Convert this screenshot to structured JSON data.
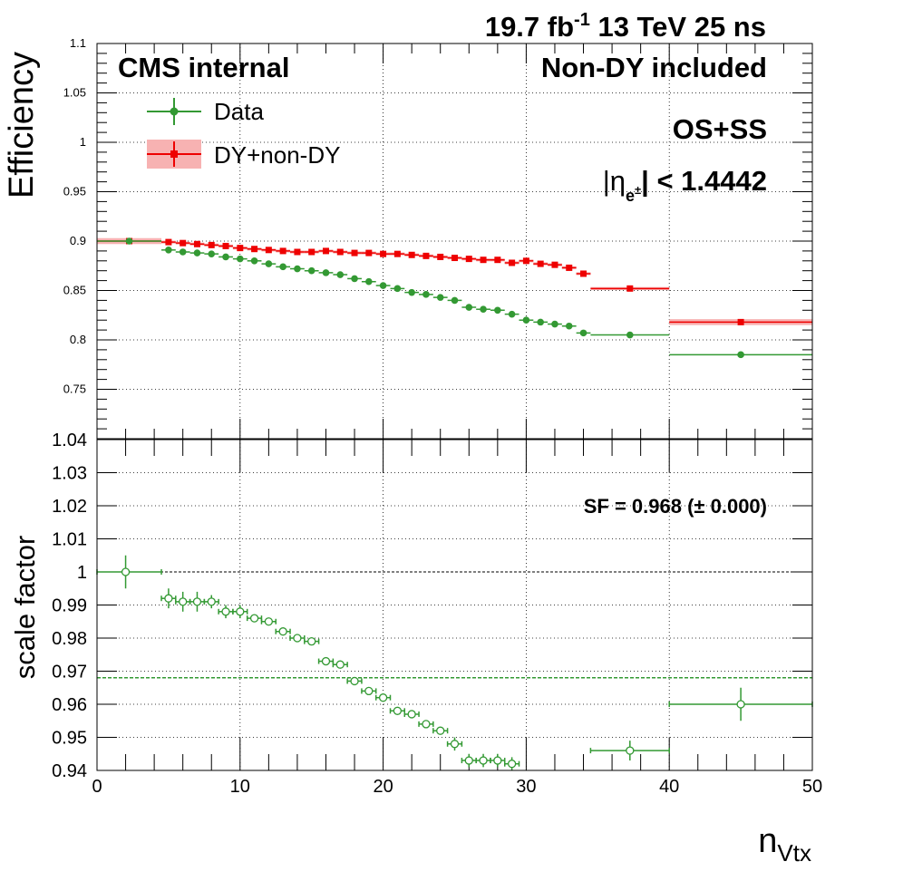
{
  "header": {
    "lumi_value": "19.7 fb",
    "lumi_exp": "-1",
    "energy": " 13 TeV 25 ns",
    "cms": "CMS internal",
    "nondy": "Non-DY included",
    "charge": "OS+SS",
    "eta_prefix": "|η",
    "eta_sub": "e",
    "eta_sup": "±",
    "eta_suffix": "| < 1.4442"
  },
  "legend": {
    "data_label": "Data",
    "mc_label": "DY+non-DY"
  },
  "colors": {
    "data": "#339933",
    "mc": "#ee0000",
    "mc_band": "#f7b2b2",
    "sf_line": "#339933"
  },
  "chart_data": [
    {
      "type": "scatter",
      "panel": "efficiency",
      "ylabel": "Efficiency",
      "xlim": [
        0,
        50
      ],
      "ylim": [
        0.7,
        1.1
      ],
      "y_ticks": [
        "0.75",
        "0.8",
        "0.85",
        "0.9",
        "0.95",
        "1",
        "1.05",
        "1.1"
      ],
      "grid": true,
      "legend_position": "top-left",
      "series": [
        {
          "name": "Data",
          "marker": "filled-circle",
          "points": [
            {
              "x": 2.25,
              "y": 0.9,
              "xlo": 0,
              "xhi": 4.5
            },
            {
              "x": 5,
              "y": 0.891,
              "xlo": 4.5,
              "xhi": 5.5
            },
            {
              "x": 6,
              "y": 0.889,
              "xlo": 5.5,
              "xhi": 6.5
            },
            {
              "x": 7,
              "y": 0.888,
              "xlo": 6.5,
              "xhi": 7.5
            },
            {
              "x": 8,
              "y": 0.887,
              "xlo": 7.5,
              "xhi": 8.5
            },
            {
              "x": 9,
              "y": 0.884,
              "xlo": 8.5,
              "xhi": 9.5
            },
            {
              "x": 10,
              "y": 0.882,
              "xlo": 9.5,
              "xhi": 10.5
            },
            {
              "x": 11,
              "y": 0.88,
              "xlo": 10.5,
              "xhi": 11.5
            },
            {
              "x": 12,
              "y": 0.877,
              "xlo": 11.5,
              "xhi": 12.5
            },
            {
              "x": 13,
              "y": 0.874,
              "xlo": 12.5,
              "xhi": 13.5
            },
            {
              "x": 14,
              "y": 0.872,
              "xlo": 13.5,
              "xhi": 14.5
            },
            {
              "x": 15,
              "y": 0.87,
              "xlo": 14.5,
              "xhi": 15.5
            },
            {
              "x": 16,
              "y": 0.868,
              "xlo": 15.5,
              "xhi": 16.5
            },
            {
              "x": 17,
              "y": 0.866,
              "xlo": 16.5,
              "xhi": 17.5
            },
            {
              "x": 18,
              "y": 0.862,
              "xlo": 17.5,
              "xhi": 18.5
            },
            {
              "x": 19,
              "y": 0.859,
              "xlo": 18.5,
              "xhi": 19.5
            },
            {
              "x": 20,
              "y": 0.855,
              "xlo": 19.5,
              "xhi": 20.5
            },
            {
              "x": 21,
              "y": 0.852,
              "xlo": 20.5,
              "xhi": 21.5
            },
            {
              "x": 22,
              "y": 0.848,
              "xlo": 21.5,
              "xhi": 22.5
            },
            {
              "x": 23,
              "y": 0.846,
              "xlo": 22.5,
              "xhi": 23.5
            },
            {
              "x": 24,
              "y": 0.843,
              "xlo": 23.5,
              "xhi": 24.5
            },
            {
              "x": 25,
              "y": 0.84,
              "xlo": 24.5,
              "xhi": 25.5
            },
            {
              "x": 26,
              "y": 0.833,
              "xlo": 25.5,
              "xhi": 26.5
            },
            {
              "x": 27,
              "y": 0.831,
              "xlo": 26.5,
              "xhi": 27.5
            },
            {
              "x": 28,
              "y": 0.83,
              "xlo": 27.5,
              "xhi": 28.5
            },
            {
              "x": 29,
              "y": 0.826,
              "xlo": 28.5,
              "xhi": 29.5
            },
            {
              "x": 30,
              "y": 0.82,
              "xlo": 29.5,
              "xhi": 30.5
            },
            {
              "x": 31,
              "y": 0.818,
              "xlo": 30.5,
              "xhi": 31.5
            },
            {
              "x": 32,
              "y": 0.816,
              "xlo": 31.5,
              "xhi": 32.5
            },
            {
              "x": 33,
              "y": 0.814,
              "xlo": 32.5,
              "xhi": 33.5
            },
            {
              "x": 34,
              "y": 0.807,
              "xlo": 33.5,
              "xhi": 34.5
            },
            {
              "x": 37.25,
              "y": 0.805,
              "xlo": 34.5,
              "xhi": 40
            },
            {
              "x": 45,
              "y": 0.785,
              "xlo": 40,
              "xhi": 50
            }
          ]
        },
        {
          "name": "DY+non-DY",
          "marker": "filled-square",
          "points": [
            {
              "x": 2.25,
              "y": 0.9,
              "xlo": 0,
              "xhi": 4.5
            },
            {
              "x": 5,
              "y": 0.899,
              "xlo": 4.5,
              "xhi": 5.5
            },
            {
              "x": 6,
              "y": 0.898,
              "xlo": 5.5,
              "xhi": 6.5
            },
            {
              "x": 7,
              "y": 0.897,
              "xlo": 6.5,
              "xhi": 7.5
            },
            {
              "x": 8,
              "y": 0.896,
              "xlo": 7.5,
              "xhi": 8.5
            },
            {
              "x": 9,
              "y": 0.895,
              "xlo": 8.5,
              "xhi": 9.5
            },
            {
              "x": 10,
              "y": 0.893,
              "xlo": 9.5,
              "xhi": 10.5
            },
            {
              "x": 11,
              "y": 0.892,
              "xlo": 10.5,
              "xhi": 11.5
            },
            {
              "x": 12,
              "y": 0.891,
              "xlo": 11.5,
              "xhi": 12.5
            },
            {
              "x": 13,
              "y": 0.89,
              "xlo": 12.5,
              "xhi": 13.5
            },
            {
              "x": 14,
              "y": 0.889,
              "xlo": 13.5,
              "xhi": 14.5
            },
            {
              "x": 15,
              "y": 0.889,
              "xlo": 14.5,
              "xhi": 15.5
            },
            {
              "x": 16,
              "y": 0.89,
              "xlo": 15.5,
              "xhi": 16.5
            },
            {
              "x": 17,
              "y": 0.889,
              "xlo": 16.5,
              "xhi": 17.5
            },
            {
              "x": 18,
              "y": 0.888,
              "xlo": 17.5,
              "xhi": 18.5
            },
            {
              "x": 19,
              "y": 0.888,
              "xlo": 18.5,
              "xhi": 19.5
            },
            {
              "x": 20,
              "y": 0.887,
              "xlo": 19.5,
              "xhi": 20.5
            },
            {
              "x": 21,
              "y": 0.887,
              "xlo": 20.5,
              "xhi": 21.5
            },
            {
              "x": 22,
              "y": 0.886,
              "xlo": 21.5,
              "xhi": 22.5
            },
            {
              "x": 23,
              "y": 0.885,
              "xlo": 22.5,
              "xhi": 23.5
            },
            {
              "x": 24,
              "y": 0.884,
              "xlo": 23.5,
              "xhi": 24.5
            },
            {
              "x": 25,
              "y": 0.883,
              "xlo": 24.5,
              "xhi": 25.5
            },
            {
              "x": 26,
              "y": 0.882,
              "xlo": 25.5,
              "xhi": 26.5
            },
            {
              "x": 27,
              "y": 0.881,
              "xlo": 26.5,
              "xhi": 27.5
            },
            {
              "x": 28,
              "y": 0.881,
              "xlo": 27.5,
              "xhi": 28.5
            },
            {
              "x": 29,
              "y": 0.878,
              "xlo": 28.5,
              "xhi": 29.5
            },
            {
              "x": 30,
              "y": 0.88,
              "xlo": 29.5,
              "xhi": 30.5
            },
            {
              "x": 31,
              "y": 0.877,
              "xlo": 30.5,
              "xhi": 31.5
            },
            {
              "x": 32,
              "y": 0.876,
              "xlo": 31.5,
              "xhi": 32.5
            },
            {
              "x": 33,
              "y": 0.873,
              "xlo": 32.5,
              "xhi": 33.5
            },
            {
              "x": 34,
              "y": 0.867,
              "xlo": 33.5,
              "xhi": 34.5
            },
            {
              "x": 37.25,
              "y": 0.852,
              "xlo": 34.5,
              "xhi": 40
            },
            {
              "x": 45,
              "y": 0.818,
              "xlo": 40,
              "xhi": 50
            }
          ]
        }
      ]
    },
    {
      "type": "scatter",
      "panel": "scale-factor",
      "ylabel": "scale factor",
      "xlabel": "n",
      "xlabel_sub": "Vtx",
      "xlim": [
        0,
        50
      ],
      "ylim": [
        0.94,
        1.04
      ],
      "x_ticks": [
        "0",
        "10",
        "20",
        "30",
        "40",
        "50"
      ],
      "y_ticks": [
        "0.94",
        "0.95",
        "0.96",
        "0.97",
        "0.98",
        "0.99",
        "1",
        "1.01",
        "1.02",
        "1.03",
        "1.04"
      ],
      "grid": true,
      "sf_text": "SF = 0.968 (± 0.000)",
      "sf_value": 0.968,
      "reference_line": 1.0,
      "series": [
        {
          "marker": "open-circle",
          "points": [
            {
              "x": 2,
              "y": 1.0,
              "xlo": 0,
              "xhi": 4.5,
              "err": 0.005
            },
            {
              "x": 5,
              "y": 0.992,
              "xlo": 4.5,
              "xhi": 5.5,
              "err": 0.003
            },
            {
              "x": 6,
              "y": 0.991,
              "xlo": 5.5,
              "xhi": 6.5,
              "err": 0.003
            },
            {
              "x": 7,
              "y": 0.991,
              "xlo": 6.5,
              "xhi": 7.5,
              "err": 0.003
            },
            {
              "x": 8,
              "y": 0.991,
              "xlo": 7.5,
              "xhi": 8.5,
              "err": 0.002
            },
            {
              "x": 9,
              "y": 0.988,
              "xlo": 8.5,
              "xhi": 9.5,
              "err": 0.002
            },
            {
              "x": 10,
              "y": 0.988,
              "xlo": 9.5,
              "xhi": 10.5,
              "err": 0.002
            },
            {
              "x": 11,
              "y": 0.986,
              "xlo": 10.5,
              "xhi": 11.5,
              "err": 0.001
            },
            {
              "x": 12,
              "y": 0.985,
              "xlo": 11.5,
              "xhi": 12.5,
              "err": 0.001
            },
            {
              "x": 13,
              "y": 0.982,
              "xlo": 12.5,
              "xhi": 13.5,
              "err": 0.001
            },
            {
              "x": 14,
              "y": 0.98,
              "xlo": 13.5,
              "xhi": 14.5,
              "err": 0.001
            },
            {
              "x": 15,
              "y": 0.979,
              "xlo": 14.5,
              "xhi": 15.5,
              "err": 0.001
            },
            {
              "x": 16,
              "y": 0.973,
              "xlo": 15.5,
              "xhi": 16.5,
              "err": 0.001
            },
            {
              "x": 17,
              "y": 0.972,
              "xlo": 16.5,
              "xhi": 17.5,
              "err": 0.001
            },
            {
              "x": 18,
              "y": 0.967,
              "xlo": 17.5,
              "xhi": 18.5,
              "err": 0.001
            },
            {
              "x": 19,
              "y": 0.964,
              "xlo": 18.5,
              "xhi": 19.5,
              "err": 0.001
            },
            {
              "x": 20,
              "y": 0.962,
              "xlo": 19.5,
              "xhi": 20.5,
              "err": 0.001
            },
            {
              "x": 21,
              "y": 0.958,
              "xlo": 20.5,
              "xhi": 21.5,
              "err": 0.001
            },
            {
              "x": 22,
              "y": 0.957,
              "xlo": 21.5,
              "xhi": 22.5,
              "err": 0.001
            },
            {
              "x": 23,
              "y": 0.954,
              "xlo": 22.5,
              "xhi": 23.5,
              "err": 0.001
            },
            {
              "x": 24,
              "y": 0.952,
              "xlo": 23.5,
              "xhi": 24.5,
              "err": 0.001
            },
            {
              "x": 25,
              "y": 0.948,
              "xlo": 24.5,
              "xhi": 25.5,
              "err": 0.002
            },
            {
              "x": 26,
              "y": 0.943,
              "xlo": 25.5,
              "xhi": 26.5,
              "err": 0.002
            },
            {
              "x": 27,
              "y": 0.943,
              "xlo": 26.5,
              "xhi": 27.5,
              "err": 0.002
            },
            {
              "x": 28,
              "y": 0.943,
              "xlo": 27.5,
              "xhi": 28.5,
              "err": 0.002
            },
            {
              "x": 29,
              "y": 0.942,
              "xlo": 28.5,
              "xhi": 29.5,
              "err": 0.002
            },
            {
              "x": 37.25,
              "y": 0.946,
              "xlo": 34.5,
              "xhi": 40,
              "err": 0.003
            },
            {
              "x": 45,
              "y": 0.96,
              "xlo": 40,
              "xhi": 50,
              "err": 0.005
            }
          ]
        }
      ]
    }
  ]
}
